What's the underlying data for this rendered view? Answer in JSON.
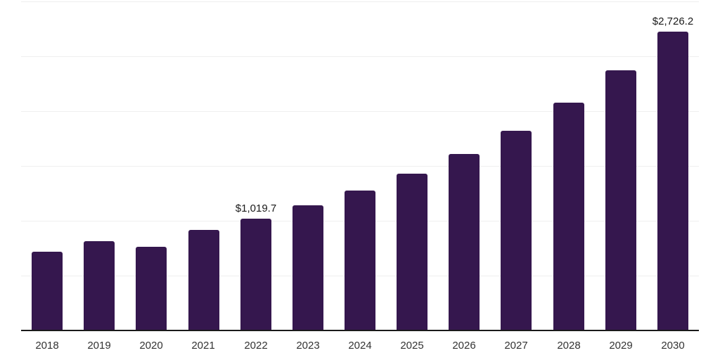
{
  "chart": {
    "background_color": "#ffffff",
    "bar_color": "#35174e",
    "gridline_color": "#efefef",
    "axis_line_color": "#1a1a1a",
    "tick_label_color": "#333333",
    "data_label_color": "#1a1a1a"
  },
  "chart_data": {
    "type": "bar",
    "title": "",
    "xlabel": "",
    "ylabel": "",
    "categories": [
      "2018",
      "2019",
      "2020",
      "2021",
      "2022",
      "2023",
      "2024",
      "2025",
      "2026",
      "2027",
      "2028",
      "2029",
      "2030"
    ],
    "values": [
      718,
      814,
      763,
      917,
      1019.7,
      1141,
      1276,
      1430,
      1609,
      1821,
      2077,
      2372,
      2726.2
    ],
    "labels": [
      null,
      null,
      null,
      null,
      "$1,019.7",
      null,
      null,
      null,
      null,
      null,
      null,
      null,
      "$2,726.2"
    ],
    "ylim": [
      0,
      3000
    ],
    "grid_step": 500,
    "grid": "horizontal",
    "legend": "none",
    "y_axis_tick_labels": "none"
  }
}
